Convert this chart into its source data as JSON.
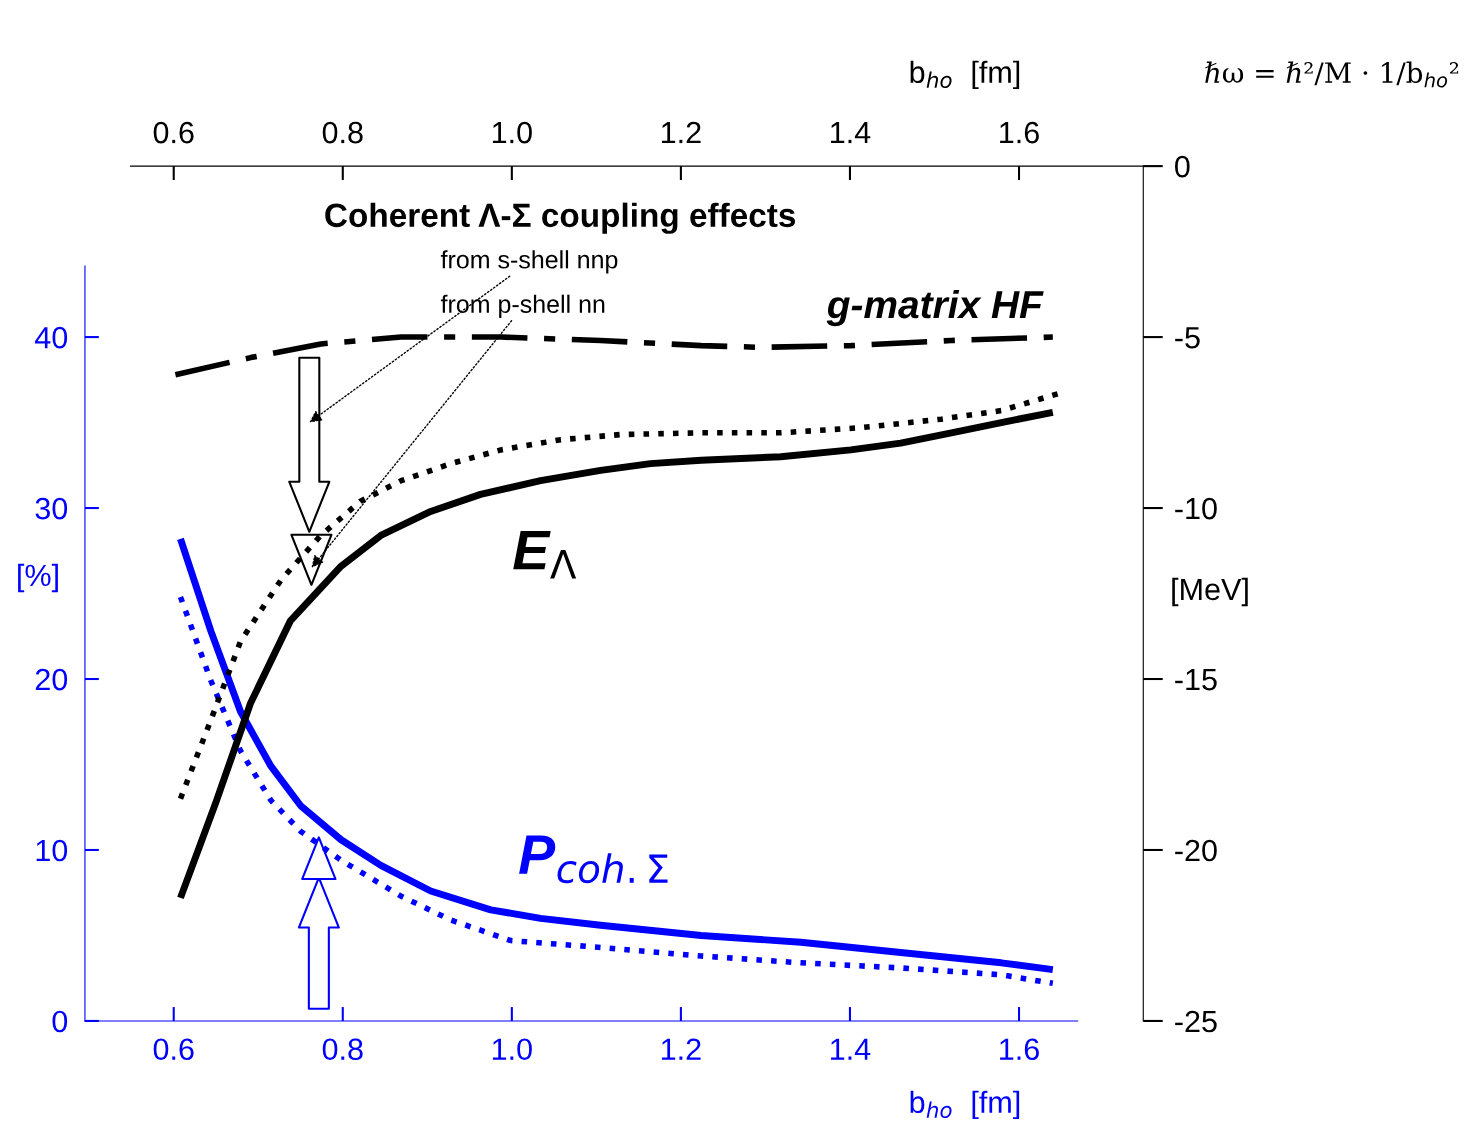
{
  "chart_data": {
    "type": "line",
    "title": "Coherent Λ-Σ coupling effects",
    "xlabel": "b$_{ho}$  [fm]",
    "x2label": "b$_{ho}$  [fm]",
    "ylabel": "[%]",
    "y2label": "[MeV]",
    "xlim": [
      0.495,
      1.747
    ],
    "xticks": [
      0.6,
      0.8,
      {
        "value": 1.0,
        "label": "1.0"
      },
      1.2,
      1.4,
      1.6
    ],
    "x2lim": [
      0.495,
      1.747
    ],
    "x2ticks": [
      0.6,
      0.8,
      {
        "value": 1.0,
        "label": "1.0"
      },
      1.2,
      1.4,
      1.6
    ],
    "ylim": [
      0,
      50
    ],
    "yticks": [
      0,
      10,
      20,
      30,
      40
    ],
    "y2lim": [
      -25,
      0
    ],
    "y2ticks": [
      0,
      -5,
      -10,
      -15,
      -20,
      -25
    ],
    "grid": false,
    "marker": "none",
    "annotations": [
      "ℏω = ℏ²/M · 1/b$_{ho}$²",
      "from s-shell nnp",
      "from p-shell nn"
    ],
    "series": [
      {
        "name": "g-matrix HF",
        "color": "#000000",
        "axis": "y2",
        "line_style": "dashdot",
        "x": [
          0.602,
          0.691,
          0.774,
          0.869,
          0.987,
          1.105,
          1.224,
          1.295,
          1.401,
          1.52,
          1.64
        ],
        "values": [
          -6.1,
          -5.6,
          -5.2,
          -5.0,
          -5.0,
          -5.1,
          -5.25,
          -5.3,
          -5.25,
          -5.1,
          -5.0
        ]
      },
      {
        "name": "E$_{Λ}$",
        "color": "#000000",
        "axis": "y2",
        "line_style": "solid",
        "x": [
          0.608,
          0.65,
          0.691,
          0.738,
          0.798,
          0.845,
          0.904,
          0.963,
          1.034,
          1.105,
          1.164,
          1.224,
          1.318,
          1.401,
          1.46,
          1.52,
          1.579,
          1.64
        ],
        "values": [
          -21.4,
          -18.6,
          -15.7,
          -13.3,
          -11.7,
          -10.8,
          -10.1,
          -9.6,
          -9.2,
          -8.9,
          -8.7,
          -8.6,
          -8.5,
          -8.3,
          -8.1,
          -7.8,
          -7.5,
          -7.2
        ]
      },
      {
        "color": "#000000",
        "axis": "y2",
        "line_style": "dotted",
        "x": [
          0.608,
          0.644,
          0.679,
          0.727,
          0.774,
          0.821,
          0.869,
          0.928,
          0.987,
          1.058,
          1.129,
          1.224,
          1.318,
          1.413,
          1.508,
          1.579,
          1.647
        ],
        "values": [
          -18.5,
          -16.2,
          -13.9,
          -12.1,
          -10.8,
          -9.8,
          -9.2,
          -8.7,
          -8.3,
          -8.0,
          -7.85,
          -7.8,
          -7.8,
          -7.65,
          -7.4,
          -7.15,
          -6.65
        ]
      },
      {
        "name": "P$_{coh.Σ}$",
        "color": "#0000ff",
        "line_style": "solid",
        "x": [
          0.608,
          0.644,
          0.679,
          0.715,
          0.75,
          0.798,
          0.845,
          0.904,
          0.975,
          1.034,
          1.105,
          1.224,
          1.342,
          1.46,
          1.579,
          1.64
        ],
        "values": [
          28.2,
          22.8,
          18.1,
          14.9,
          12.6,
          10.6,
          9.1,
          7.6,
          6.5,
          6.0,
          5.6,
          5.0,
          4.6,
          4.0,
          3.4,
          3.0
        ]
      },
      {
        "color": "#0000ff",
        "line_style": "dotted",
        "x": [
          0.608,
          0.644,
          0.679,
          0.715,
          0.75,
          0.798,
          0.869,
          0.928,
          0.999,
          1.105,
          1.224,
          1.342,
          1.46,
          1.579,
          1.64
        ],
        "values": [
          24.8,
          19.9,
          15.8,
          12.9,
          11.1,
          9.4,
          7.3,
          5.9,
          4.7,
          4.3,
          3.8,
          3.4,
          3.1,
          2.7,
          2.2
        ]
      }
    ]
  }
}
